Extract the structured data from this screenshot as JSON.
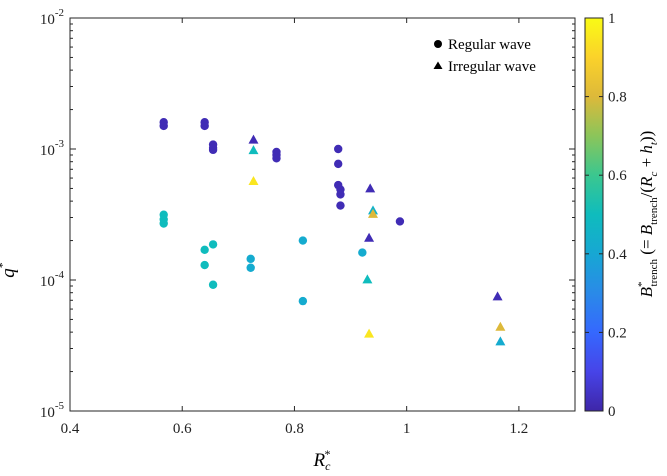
{
  "chart_data": {
    "type": "scatter",
    "xlabel": "R",
    "xlabel_sub": "c",
    "xlabel_sup": "*",
    "ylabel": "q",
    "ylabel_sup": "*",
    "xlim": [
      0.4,
      1.3
    ],
    "ylim": [
      1e-05,
      0.01
    ],
    "y_scale": "log",
    "x_ticks": [
      0.4,
      0.6,
      0.8,
      1.0,
      1.2
    ],
    "x_tick_labels": [
      "0.4",
      "0.6",
      "0.8",
      "1",
      "1.2"
    ],
    "y_ticks": [
      1e-05,
      0.0001,
      0.001,
      0.01
    ],
    "y_tick_labels": [
      {
        "base": "10",
        "exp": "-5"
      },
      {
        "base": "10",
        "exp": "-4"
      },
      {
        "base": "10",
        "exp": "-3"
      },
      {
        "base": "10",
        "exp": "-2"
      }
    ],
    "grid": false,
    "legend_position": "top-right",
    "legend": [
      {
        "marker": "circle",
        "label": "Regular wave"
      },
      {
        "marker": "triangle",
        "label": "Irregular wave"
      }
    ],
    "colorbar": {
      "min": 0,
      "max": 1,
      "ticks": [
        0,
        0.2,
        0.4,
        0.6,
        0.8,
        1
      ],
      "tick_labels": [
        "0",
        "0.2",
        "0.4",
        "0.6",
        "0.8",
        "1"
      ],
      "label": "B*trench (= Btrench/(Rc + ht))",
      "colormap": "parula"
    },
    "series": [
      {
        "name": "Regular wave",
        "marker": "circle",
        "points": [
          {
            "x": 0.567,
            "y": 0.0016,
            "c": 0.02
          },
          {
            "x": 0.567,
            "y": 0.0015,
            "c": 0.02
          },
          {
            "x": 0.567,
            "y": 0.000315,
            "c": 0.5
          },
          {
            "x": 0.567,
            "y": 0.00029,
            "c": 0.5
          },
          {
            "x": 0.567,
            "y": 0.00027,
            "c": 0.5
          },
          {
            "x": 0.64,
            "y": 0.0016,
            "c": 0.02
          },
          {
            "x": 0.64,
            "y": 0.0015,
            "c": 0.02
          },
          {
            "x": 0.64,
            "y": 0.00017,
            "c": 0.5
          },
          {
            "x": 0.64,
            "y": 0.00013,
            "c": 0.5
          },
          {
            "x": 0.655,
            "y": 0.00108,
            "c": 0.02
          },
          {
            "x": 0.655,
            "y": 0.00102,
            "c": 0.02
          },
          {
            "x": 0.655,
            "y": 0.000985,
            "c": 0.02
          },
          {
            "x": 0.655,
            "y": 0.000187,
            "c": 0.5
          },
          {
            "x": 0.655,
            "y": 9.2e-05,
            "c": 0.5
          },
          {
            "x": 0.722,
            "y": 0.000145,
            "c": 0.42
          },
          {
            "x": 0.722,
            "y": 0.000124,
            "c": 0.42
          },
          {
            "x": 0.768,
            "y": 0.00095,
            "c": 0.02
          },
          {
            "x": 0.768,
            "y": 0.0009,
            "c": 0.02
          },
          {
            "x": 0.768,
            "y": 0.00085,
            "c": 0.02
          },
          {
            "x": 0.815,
            "y": 0.0002,
            "c": 0.42
          },
          {
            "x": 0.815,
            "y": 6.9e-05,
            "c": 0.42
          },
          {
            "x": 0.878,
            "y": 0.001,
            "c": 0.02
          },
          {
            "x": 0.878,
            "y": 0.00077,
            "c": 0.02
          },
          {
            "x": 0.878,
            "y": 0.00053,
            "c": 0.02
          },
          {
            "x": 0.882,
            "y": 0.00049,
            "c": 0.02
          },
          {
            "x": 0.882,
            "y": 0.00045,
            "c": 0.02
          },
          {
            "x": 0.882,
            "y": 0.00037,
            "c": 0.02
          },
          {
            "x": 0.921,
            "y": 0.000162,
            "c": 0.42
          },
          {
            "x": 0.988,
            "y": 0.00028,
            "c": 0.02
          }
        ]
      },
      {
        "name": "Irregular wave",
        "marker": "triangle",
        "points": [
          {
            "x": 0.727,
            "y": 0.00118,
            "c": 0.02
          },
          {
            "x": 0.727,
            "y": 0.00098,
            "c": 0.5
          },
          {
            "x": 0.727,
            "y": 0.00057,
            "c": 0.95
          },
          {
            "x": 0.935,
            "y": 0.0005,
            "c": 0.02
          },
          {
            "x": 0.933,
            "y": 0.00021,
            "c": 0.02
          },
          {
            "x": 0.94,
            "y": 0.00034,
            "c": 0.45
          },
          {
            "x": 0.94,
            "y": 0.00032,
            "c": 0.8
          },
          {
            "x": 0.93,
            "y": 0.000101,
            "c": 0.5
          },
          {
            "x": 0.933,
            "y": 3.9e-05,
            "c": 0.95
          },
          {
            "x": 1.162,
            "y": 7.5e-05,
            "c": 0.02
          },
          {
            "x": 1.167,
            "y": 4.4e-05,
            "c": 0.8
          },
          {
            "x": 1.167,
            "y": 3.4e-05,
            "c": 0.42
          }
        ]
      }
    ]
  }
}
